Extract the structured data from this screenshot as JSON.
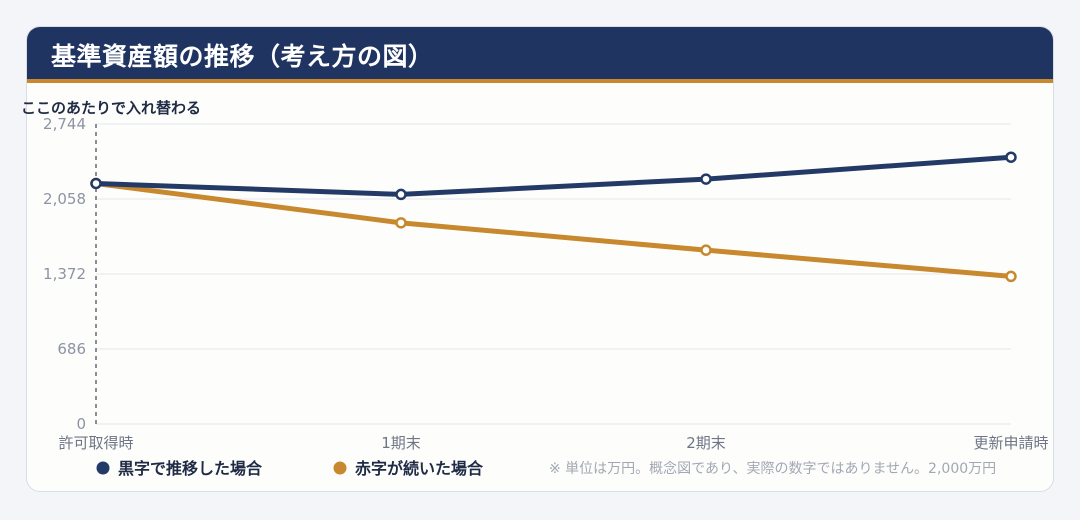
{
  "title": "基準資産額の推移（考え方の図）",
  "colors": {
    "header_bg": "#1f3461",
    "header_accent": "#c8882e",
    "series_black": "#243a66",
    "series_red": "#c8882e"
  },
  "chart_data": {
    "type": "line",
    "title": "基準資産額の推移（考え方の図）",
    "categories": [
      "許可取得時",
      "1期末",
      "2期末",
      "更新申請時"
    ],
    "y_ticks": [
      0,
      686,
      1372,
      2058,
      2744
    ],
    "y_tick_labels": [
      "0",
      "686",
      "1,372",
      "2,058",
      "2,744"
    ],
    "ylim": [
      0,
      2744
    ],
    "grid": true,
    "series": [
      {
        "name": "黒字で推移した場合",
        "values": [
          2200,
          2100,
          2240,
          2440
        ]
      },
      {
        "name": "赤字が続いた場合",
        "values": [
          2200,
          1840,
          1590,
          1350
        ]
      }
    ],
    "annotation": "ここのあたりで入れ替わる",
    "note": "※ 単位は万円。概念図であり、実際の数字ではありません。2,000万円",
    "legend_position": "bottom-left"
  }
}
